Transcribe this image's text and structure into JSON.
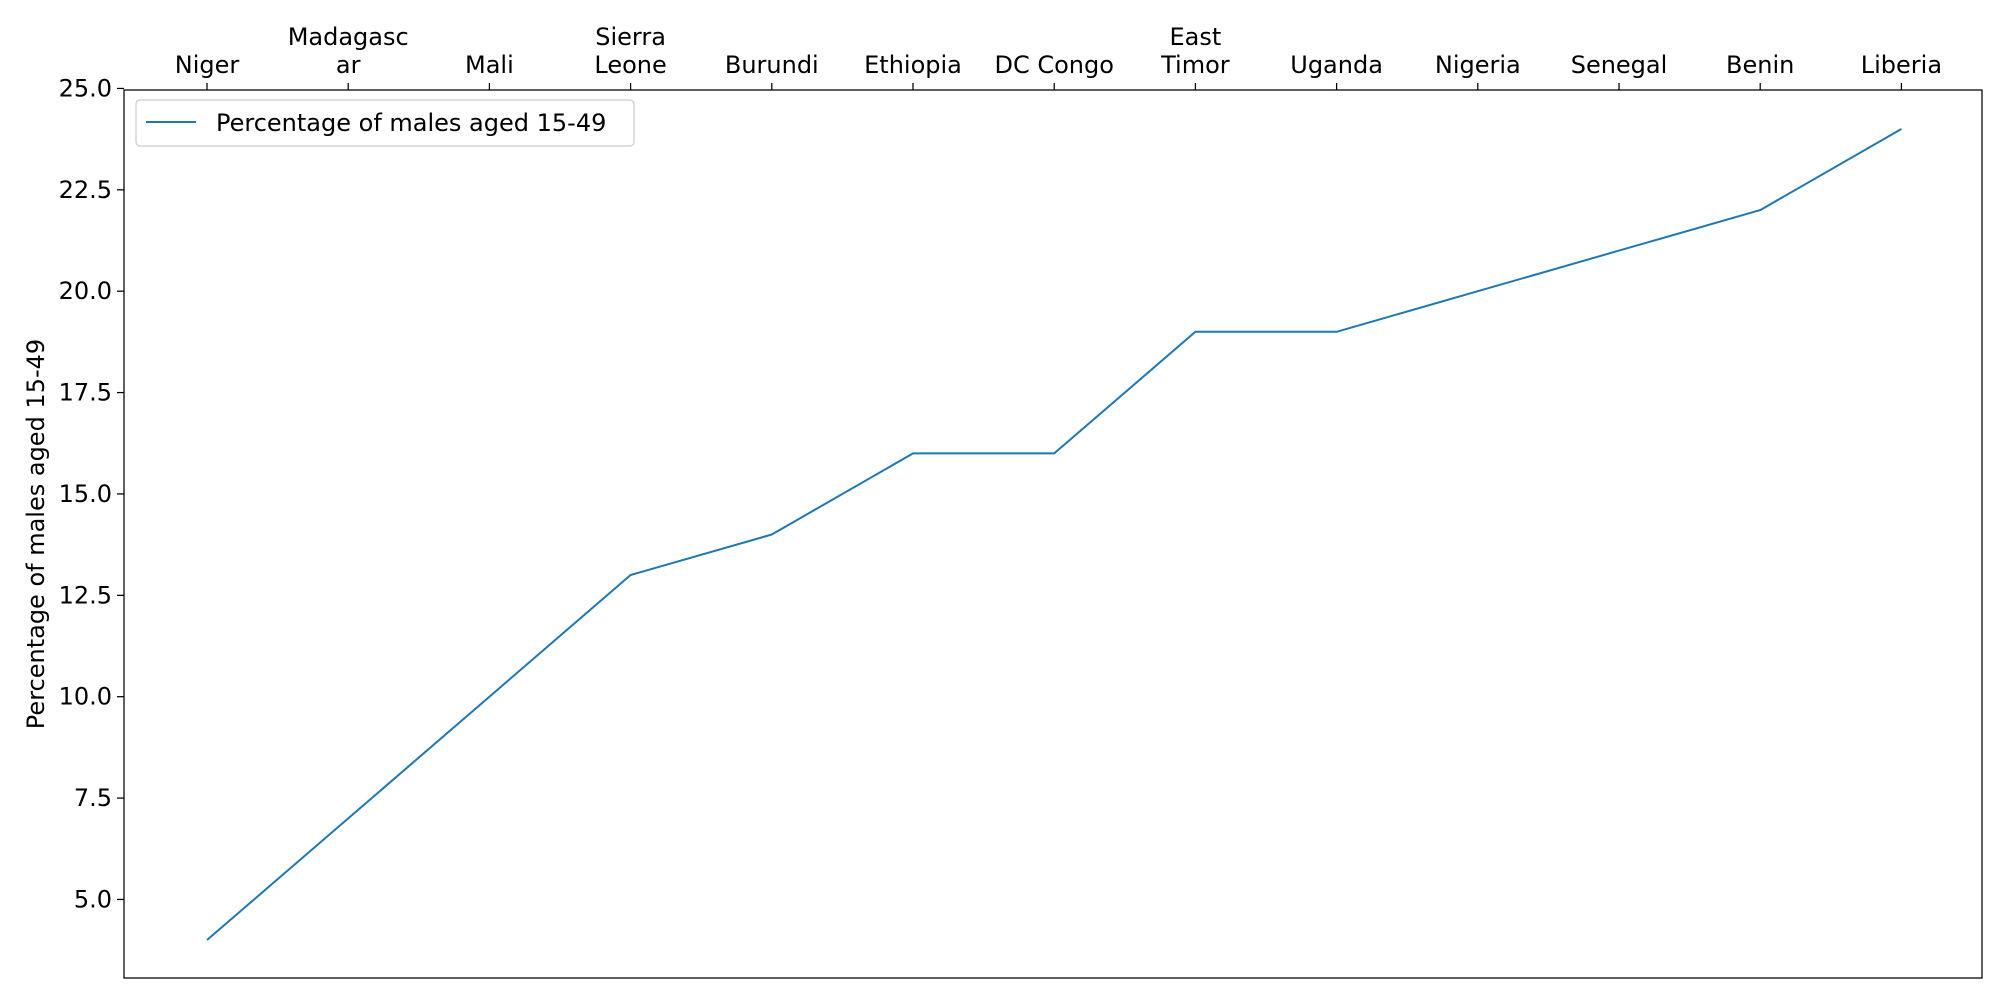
{
  "chart_data": {
    "type": "line",
    "title": "",
    "xlabel": "",
    "ylabel": "Percentage of males aged 15-49",
    "categories": [
      [
        "Niger"
      ],
      [
        "Madagasc",
        "ar"
      ],
      [
        "Mali"
      ],
      [
        "Sierra",
        "Leone"
      ],
      [
        "Burundi"
      ],
      [
        "Ethiopia"
      ],
      [
        "DC Congo"
      ],
      [
        "East",
        "Timor"
      ],
      [
        "Uganda"
      ],
      [
        "Nigeria"
      ],
      [
        "Senegal"
      ],
      [
        "Benin"
      ],
      [
        "Liberia"
      ]
    ],
    "series": [
      {
        "name": "Percentage of males aged 15-49",
        "color": "#1f77b4",
        "values": [
          4,
          7,
          10,
          13,
          14,
          16,
          16,
          19,
          19,
          20,
          21,
          22,
          24
        ]
      }
    ],
    "ylim": [
      3,
      25
    ],
    "yticks": [
      "5.0",
      "7.5",
      "10.0",
      "12.5",
      "15.0",
      "17.5",
      "20.0",
      "22.5",
      "25.0"
    ],
    "x_axis_position": "top",
    "grid": false,
    "legend": "top-left"
  }
}
